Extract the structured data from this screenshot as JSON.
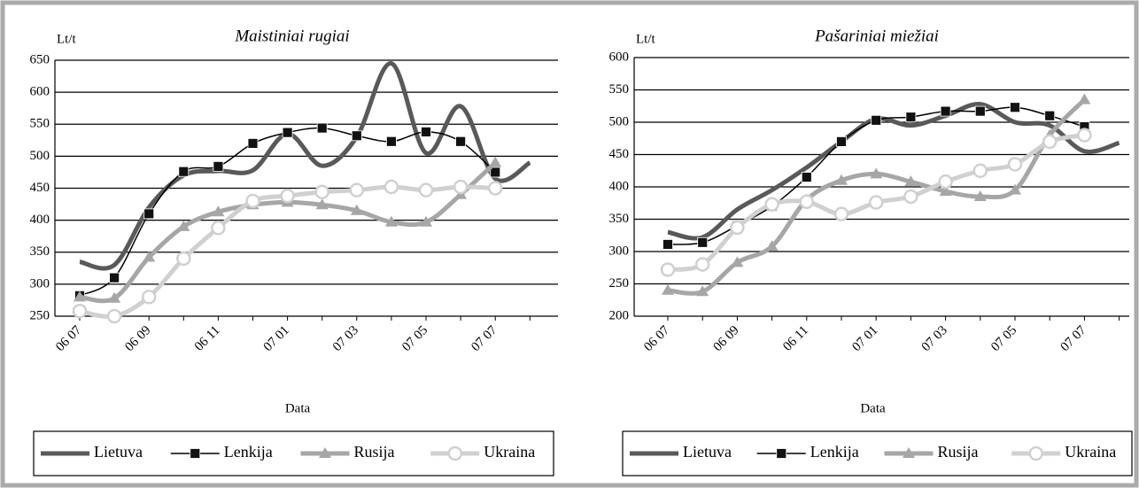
{
  "chart_data": [
    {
      "type": "line",
      "title": "Maistiniai rugiai",
      "y_label": "Lt/t",
      "x_label": "Data",
      "categories": [
        "06 07",
        null,
        "06 09",
        null,
        "06 11",
        null,
        "07 01",
        null,
        "07 03",
        null,
        "07 05",
        null,
        "07 07",
        null
      ],
      "ylim": [
        250,
        650
      ],
      "yticks": [
        250,
        300,
        350,
        400,
        450,
        500,
        550,
        600,
        650
      ],
      "grid": true,
      "legend": "bottom",
      "series": [
        {
          "name": "Lietuva",
          "color": "#595959",
          "marker": "none",
          "values": [
            335,
            330,
            420,
            470,
            477,
            478,
            535,
            485,
            530,
            645,
            505,
            578,
            465,
            490
          ]
        },
        {
          "name": "Lenkija",
          "color": "#000000",
          "marker": "square",
          "values": [
            282,
            310,
            410,
            476,
            484,
            520,
            537,
            544,
            532,
            523,
            538,
            523,
            475,
            null
          ]
        },
        {
          "name": "Rusija",
          "color": "#a6a6a6",
          "marker": "triangle",
          "values": [
            280,
            278,
            342,
            390,
            413,
            424,
            428,
            424,
            415,
            397,
            397,
            440,
            490,
            null
          ]
        },
        {
          "name": "Ukraina",
          "color": "#d0d0d0",
          "marker": "circle",
          "values": [
            258,
            250,
            280,
            340,
            388,
            430,
            438,
            444,
            447,
            452,
            447,
            452,
            450,
            null
          ]
        }
      ]
    },
    {
      "type": "line",
      "title": "Pašariniai miežiai",
      "y_label": "Lt/t",
      "x_label": "Data",
      "categories": [
        "06 07",
        null,
        "06 09",
        null,
        "06 11",
        null,
        "07 01",
        null,
        "07 03",
        null,
        "07 05",
        null,
        "07 07",
        null
      ],
      "ylim": [
        200,
        600
      ],
      "yticks": [
        200,
        250,
        300,
        350,
        400,
        450,
        500,
        550,
        600
      ],
      "grid": true,
      "legend": "bottom",
      "series": [
        {
          "name": "Lietuva",
          "color": "#595959",
          "marker": "none",
          "values": [
            330,
            322,
            365,
            395,
            430,
            470,
            505,
            495,
            510,
            528,
            500,
            495,
            455,
            468
          ]
        },
        {
          "name": "Lenkija",
          "color": "#000000",
          "marker": "square",
          "values": [
            311,
            314,
            340,
            370,
            415,
            470,
            503,
            508,
            517,
            517,
            523,
            510,
            493,
            null
          ]
        },
        {
          "name": "Rusija",
          "color": "#a6a6a6",
          "marker": "triangle",
          "values": [
            240,
            238,
            283,
            308,
            380,
            410,
            420,
            408,
            393,
            385,
            395,
            480,
            535,
            null
          ]
        },
        {
          "name": "Ukraina",
          "color": "#d0d0d0",
          "marker": "circle",
          "values": [
            272,
            280,
            337,
            373,
            377,
            358,
            376,
            385,
            408,
            425,
            435,
            470,
            480,
            null
          ]
        }
      ]
    }
  ]
}
